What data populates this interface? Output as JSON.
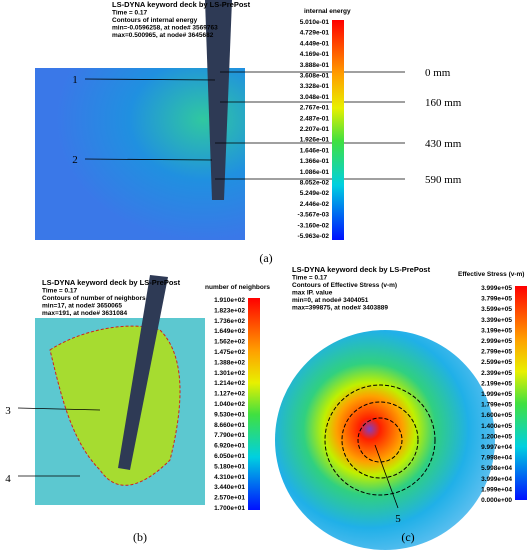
{
  "panels": [
    {
      "caption": "(a)",
      "header": [
        "LS-DYNA keyword deck by LS-PrePost",
        "Time =        0.17",
        "Contours of internal energy",
        "min=-0.0596258, at node# 3569763",
        "max=0.500965, at node# 3645682"
      ],
      "legend_title": "internal energy",
      "legend_labels": [
        "5.010e-01",
        "4.729e-01",
        "4.449e-01",
        "4.169e-01",
        "3.888e-01",
        "3.608e-01",
        "3.328e-01",
        "3.048e-01",
        "2.767e-01",
        "2.487e-01",
        "2.207e-01",
        "1.926e-01",
        "1.646e-01",
        "1.366e-01",
        "1.086e-01",
        "8.052e-02",
        "5.249e-02",
        "2.446e-02",
        "-3.567e-03",
        "-3.160e-02",
        "-5.963e-02"
      ],
      "markers": [
        "1",
        "2"
      ],
      "depths": [
        "0 mm",
        "160 mm",
        "430 mm",
        "590 mm"
      ]
    },
    {
      "caption": "(b)",
      "header": [
        "LS-DYNA keyword deck by LS-PrePost",
        "Time =        0.17",
        "Contours of number of neighbors",
        " min=17, at node# 3650065",
        " max=191, at node# 3631084"
      ],
      "legend_title": "number of neighbors",
      "legend_labels": [
        "1.910e+02",
        "1.823e+02",
        "1.736e+02",
        "1.649e+02",
        "1.562e+02",
        "1.475e+02",
        "1.388e+02",
        "1.301e+02",
        "1.214e+02",
        "1.127e+02",
        "1.040e+02",
        "9.530e+01",
        "8.660e+01",
        "7.790e+01",
        "6.920e+01",
        "6.050e+01",
        "5.180e+01",
        "4.310e+01",
        "3.440e+01",
        "2.570e+01",
        "1.700e+01"
      ],
      "markers": [
        "3",
        "4"
      ]
    },
    {
      "caption": "(c)",
      "header": [
        "LS-DYNA keyword deck by LS-PrePost",
        "Time =        0.17",
        "Contours of Effective Stress (v-m)",
        "max IP. value",
        "min=0, at node# 3404051",
        "max=399875, at node# 3403889"
      ],
      "legend_title": "Effective Stress (v-m)",
      "legend_labels": [
        "3.999e+05",
        "3.799e+05",
        "3.599e+05",
        "3.399e+05",
        "3.199e+05",
        "2.999e+05",
        "2.799e+05",
        "2.599e+05",
        "2.399e+05",
        "2.199e+05",
        "1.999e+05",
        "1.799e+05",
        "1.600e+05",
        "1.400e+05",
        "1.200e+05",
        "9.997e+04",
        "7.998e+04",
        "5.998e+04",
        "3.999e+04",
        "1.999e+04",
        "0.000e+00"
      ],
      "markers": [
        "5"
      ]
    }
  ]
}
